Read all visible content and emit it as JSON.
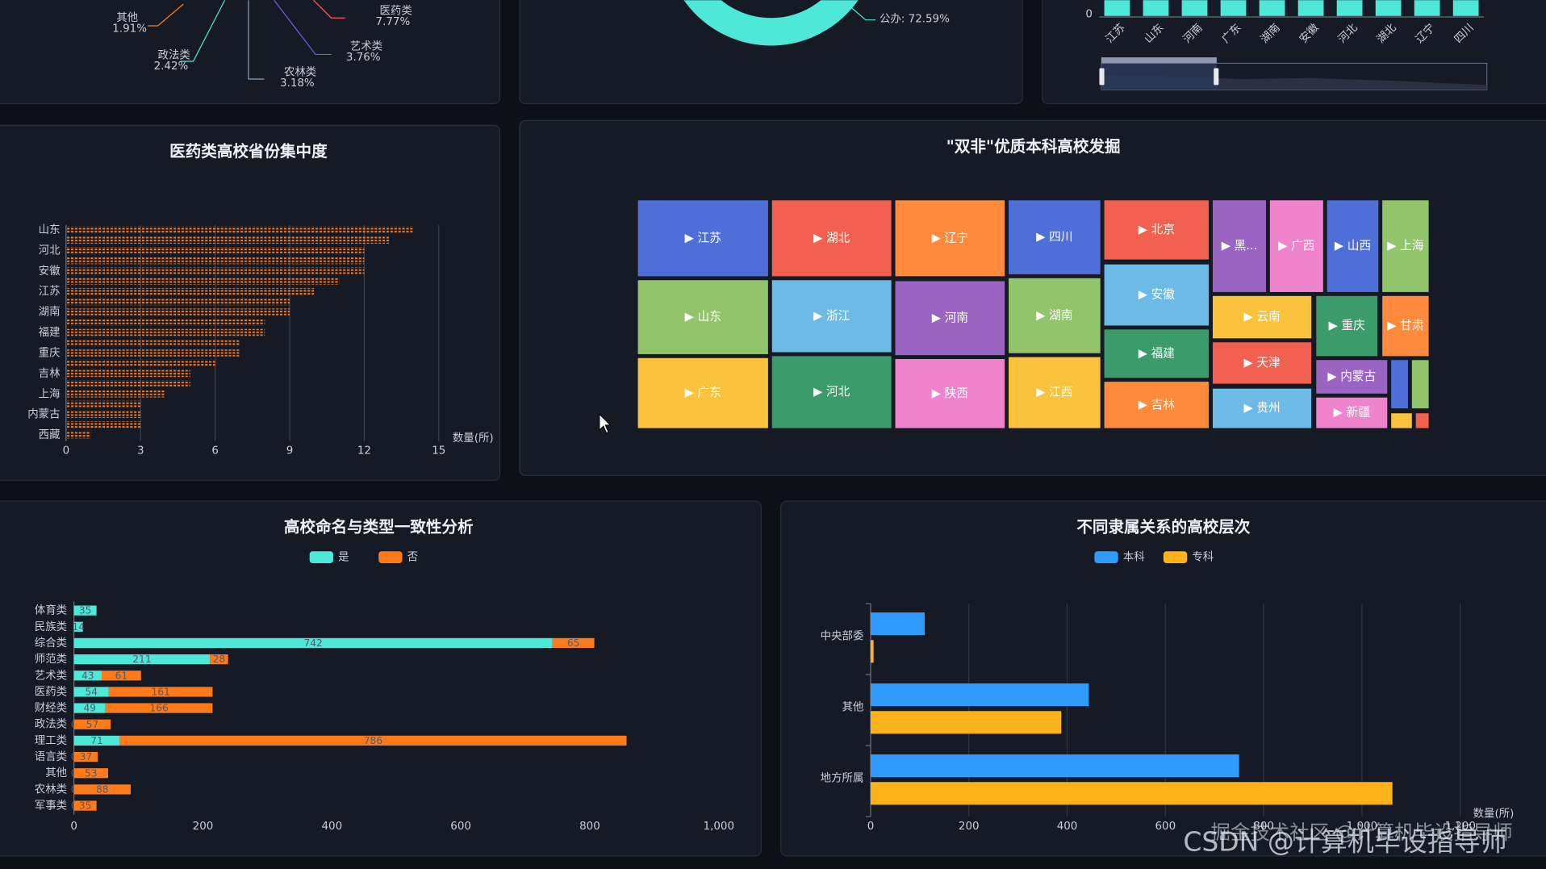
{
  "chart_data": [
    {
      "type": "pie",
      "categories": [
        "其他",
        "政法类",
        "农林类",
        "艺术类",
        "医药类"
      ],
      "values": [
        1.91,
        2.42,
        3.18,
        3.76,
        7.77
      ],
      "value_labels": [
        "1.91%",
        "2.42%",
        "3.18%",
        "3.76%",
        "7.77%"
      ],
      "colors": [
        "#ff7a1a",
        "#4de8d8",
        "#8aa0c8",
        "#7b5cd6",
        "#ff5c5c"
      ]
    },
    {
      "type": "donut",
      "categories": [
        "公办"
      ],
      "values": [
        72.59
      ],
      "value_labels": [
        "公办: 72.59%"
      ],
      "color": "#4de8d8"
    },
    {
      "type": "bar",
      "categories": [
        "江苏",
        "山东",
        "河南",
        "广东",
        "湖南",
        "安徽",
        "河北",
        "湖北",
        "辽宁",
        "四川"
      ],
      "yticks": [
        0
      ],
      "color": "#4de8d8"
    },
    {
      "type": "pictorialBar",
      "title": "医药类高校省份集中度",
      "categories": [
        "山东",
        null,
        "河北",
        null,
        "安徽",
        null,
        "江苏",
        null,
        "湖南",
        null,
        "福建",
        null,
        "重庆",
        null,
        "吉林",
        null,
        "上海",
        null,
        "内蒙古",
        null,
        "西藏"
      ],
      "values": [
        14,
        13,
        12,
        12,
        12,
        11,
        10,
        9,
        9,
        8,
        8,
        7,
        7,
        6,
        5,
        5,
        4,
        3,
        3,
        3,
        1
      ],
      "xlim": [
        0,
        15
      ],
      "xticks": [
        0,
        3,
        6,
        9,
        12,
        15
      ],
      "xlabel": "数量(所)",
      "color": "#ff7a1a",
      "grid": true
    },
    {
      "type": "treemap",
      "title": "\"双非\"优质本科高校发掘",
      "nodes": [
        {
          "label": "▶ 江苏",
          "color": "#4f6fd8"
        },
        {
          "label": "▶ 山东",
          "color": "#91c46b"
        },
        {
          "label": "▶ 广东",
          "color": "#fbc23b"
        },
        {
          "label": "▶ 湖北",
          "color": "#f2614f"
        },
        {
          "label": "▶ 浙江",
          "color": "#6cbbe6"
        },
        {
          "label": "▶ 河北",
          "color": "#3c9b6b"
        },
        {
          "label": "▶ 辽宁",
          "color": "#ff8a3c"
        },
        {
          "label": "▶ 河南",
          "color": "#9a65c2"
        },
        {
          "label": "▶ 陕西",
          "color": "#f084cc"
        },
        {
          "label": "▶ 四川",
          "color": "#4f6fd8"
        },
        {
          "label": "▶ 湖南",
          "color": "#91c46b"
        },
        {
          "label": "▶ 江西",
          "color": "#fbc23b"
        },
        {
          "label": "▶ 北京",
          "color": "#f2614f"
        },
        {
          "label": "▶ 安徽",
          "color": "#6cbbe6"
        },
        {
          "label": "▶ 福建",
          "color": "#3c9b6b"
        },
        {
          "label": "▶ 吉林",
          "color": "#ff8a3c"
        },
        {
          "label": "▶ 黑...",
          "color": "#9a65c2"
        },
        {
          "label": "▶ 广西",
          "color": "#f084cc"
        },
        {
          "label": "▶ 山西",
          "color": "#4f6fd8"
        },
        {
          "label": "▶ 上海",
          "color": "#91c46b"
        },
        {
          "label": "▶ 云南",
          "color": "#fbc23b"
        },
        {
          "label": "▶ 天津",
          "color": "#f2614f"
        },
        {
          "label": "▶ 贵州",
          "color": "#6cbbe6"
        },
        {
          "label": "▶ 重庆",
          "color": "#3c9b6b"
        },
        {
          "label": "▶ 甘肃",
          "color": "#ff8a3c"
        },
        {
          "label": "▶ 内蒙古",
          "color": "#9a65c2"
        },
        {
          "label": "▶ 新疆",
          "color": "#f084cc"
        },
        {
          "color": "#4f6fd8"
        },
        {
          "color": "#91c46b"
        },
        {
          "color": "#fbc23b"
        },
        {
          "color": "#f2614f"
        }
      ]
    },
    {
      "type": "stackedBar",
      "title": "高校命名与类型一致性分析",
      "categories": [
        "体育类",
        "民族类",
        "综合类",
        "师范类",
        "艺术类",
        "医药类",
        "财经类",
        "政法类",
        "理工类",
        "语言类",
        "其他",
        "农林类",
        "军事类"
      ],
      "series": [
        {
          "name": "是",
          "color": "#4de8d8",
          "values": [
            35,
            14,
            742,
            211,
            43,
            54,
            49,
            0,
            71,
            0,
            0,
            0,
            0
          ]
        },
        {
          "name": "否",
          "color": "#ff7a1a",
          "values": [
            null,
            null,
            65,
            28,
            61,
            161,
            166,
            57,
            786,
            37,
            53,
            88,
            35
          ]
        }
      ],
      "xlim": [
        0,
        1000
      ],
      "xticks": [
        0,
        200,
        400,
        600,
        800,
        {
          "value": 1000,
          "label": "1,000"
        }
      ]
    },
    {
      "type": "groupedBar",
      "title": "不同隶属关系的高校层次",
      "categories": [
        "中央部委",
        "其他",
        "地方所属"
      ],
      "series": [
        {
          "name": "本科",
          "color": "#2f9bff",
          "values": [
            110,
            444,
            750
          ]
        },
        {
          "name": "专科",
          "color": "#ffb21a",
          "values": [
            6,
            388,
            1062
          ]
        }
      ],
      "xlim": [
        0,
        1200
      ],
      "xticks": [
        0,
        200,
        400,
        600,
        800,
        {
          "value": 1000,
          "label": "1,000"
        },
        {
          "value": 1200,
          "label": "1,200"
        }
      ],
      "xlabel": "数量(所)",
      "grid": true
    }
  ],
  "watermarks": [
    "掘金技术社区 @计算机毕设指导师",
    "CSDN @计算机毕设指导师"
  ]
}
